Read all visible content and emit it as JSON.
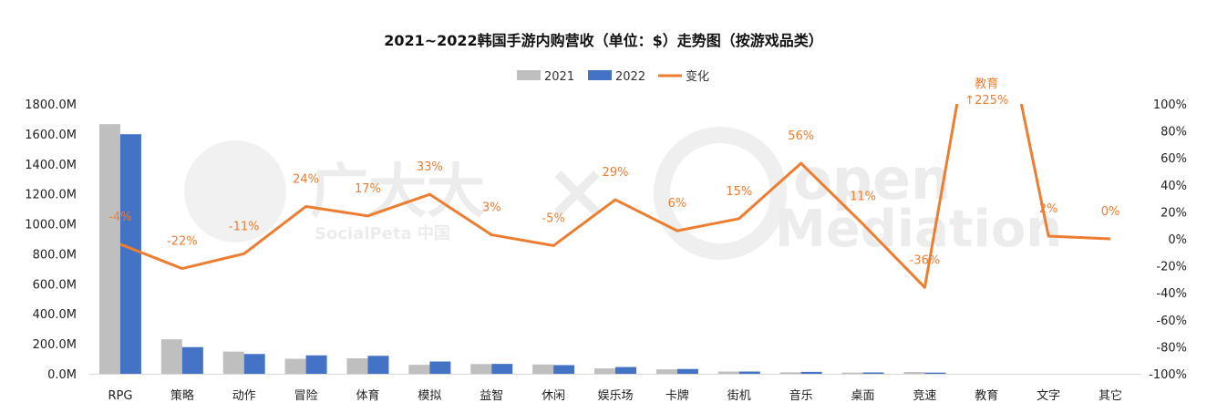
{
  "chart_data": {
    "type": "bar",
    "title": "2021~2022韩国手游内购营收（单位：$）走势图（按游戏品类）",
    "categories": [
      "RPG",
      "策略",
      "动作",
      "冒险",
      "体育",
      "模拟",
      "益智",
      "休闲",
      "娱乐场",
      "卡牌",
      "街机",
      "音乐",
      "桌面",
      "竞速",
      "教育",
      "文字",
      "其它"
    ],
    "series": [
      {
        "name": "2021",
        "type": "bar",
        "axis": "left",
        "color": "#BFBFBF",
        "values": [
          1665,
          230,
          148,
          100,
          103,
          60,
          65,
          62,
          36,
          30,
          15,
          10,
          8,
          12,
          0,
          0,
          0
        ]
      },
      {
        "name": "2022",
        "type": "bar",
        "axis": "left",
        "color": "#4472C4",
        "values": [
          1598,
          178,
          132,
          123,
          120,
          82,
          66,
          58,
          45,
          32,
          15,
          13,
          9,
          8,
          0,
          0,
          0
        ]
      },
      {
        "name": "变化",
        "type": "line",
        "axis": "right",
        "color": "#ED7D31",
        "values": [
          -4,
          -22,
          -11,
          24,
          17,
          33,
          3,
          -5,
          29,
          6,
          15,
          56,
          11,
          -36,
          225,
          2,
          0
        ],
        "labels": [
          "-4%",
          "-22%",
          "-11%",
          "24%",
          "17%",
          "33%",
          "3%",
          "-5%",
          "29%",
          "6%",
          "15%",
          "56%",
          "11%",
          "-36%",
          "教育\n↑225%",
          "2%",
          "0%"
        ]
      }
    ],
    "y_left": {
      "ylim": [
        0,
        1800
      ],
      "ticks": [
        "0.0M",
        "200.0M",
        "400.0M",
        "600.0M",
        "800.0M",
        "1000.0M",
        "1200.0M",
        "1400.0M",
        "1600.0M",
        "1800.0M"
      ]
    },
    "y_right": {
      "ylim": [
        -100,
        100
      ],
      "ticks": [
        "-100%",
        "-80%",
        "-60%",
        "-40%",
        "-20%",
        "0%",
        "20%",
        "40%",
        "60%",
        "80%",
        "100%"
      ]
    },
    "legend": {
      "position": "top-center",
      "entries": [
        "2021",
        "2022",
        "变化"
      ]
    },
    "grid": false
  },
  "watermark": {
    "left_text": "广大大",
    "left_sub": "SocialPeta 中国",
    "right_text_1": "open",
    "right_text_2": "Mediation"
  }
}
